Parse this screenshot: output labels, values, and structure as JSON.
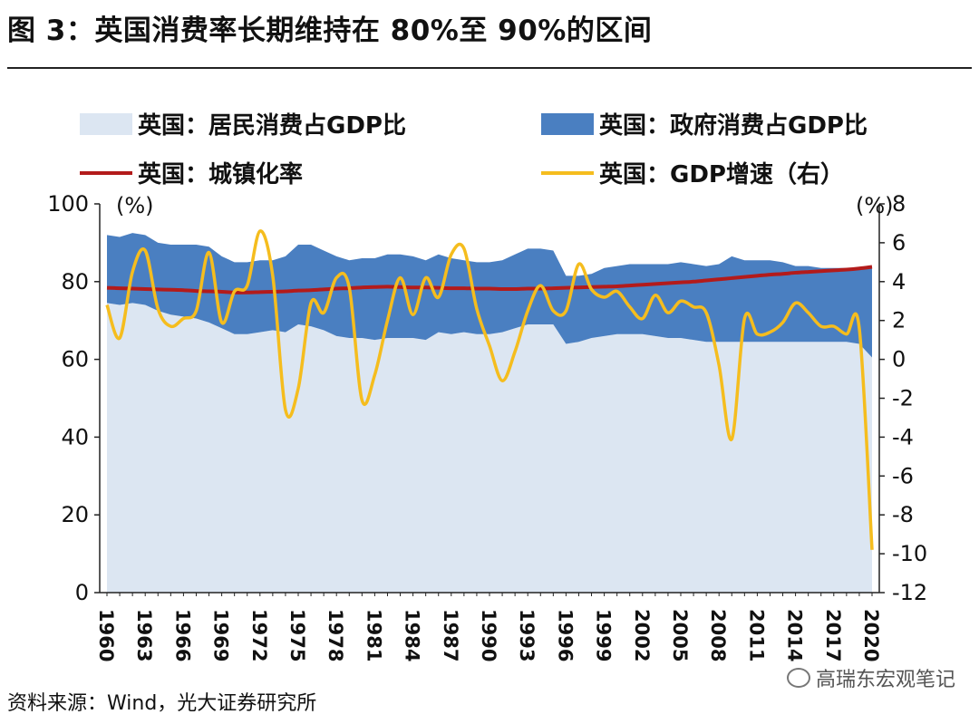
{
  "header": {
    "title": "图 3：英国消费率长期维持在 80%至 90%的区间"
  },
  "legend": {
    "household": "英国：居民消费占GDP比",
    "government": "英国：政府消费占GDP比",
    "urbanization": "英国：城镇化率",
    "gdp": "英国：GDP增速（右）"
  },
  "colors": {
    "household": "#dce6f2",
    "government": "#4a7fc1",
    "urbanization": "#b31b1b",
    "gdp": "#f5bd1e"
  },
  "axis": {
    "left_unit": "(%)",
    "right_unit": "(%)"
  },
  "footer": {
    "source": "资料来源：Wind，光大证券研究所",
    "watermark": "高瑞东宏观笔记"
  },
  "chart_data": {
    "type": "area",
    "title": "英国消费率长期维持在 80%至 90%的区间",
    "x": [
      1960,
      1961,
      1962,
      1963,
      1964,
      1965,
      1966,
      1967,
      1968,
      1969,
      1970,
      1971,
      1972,
      1973,
      1974,
      1975,
      1976,
      1977,
      1978,
      1979,
      1980,
      1981,
      1982,
      1983,
      1984,
      1985,
      1986,
      1987,
      1988,
      1989,
      1990,
      1991,
      1992,
      1993,
      1994,
      1995,
      1996,
      1997,
      1998,
      1999,
      2000,
      2001,
      2002,
      2003,
      2004,
      2005,
      2006,
      2007,
      2008,
      2009,
      2010,
      2011,
      2012,
      2013,
      2014,
      2015,
      2016,
      2017,
      2018,
      2019,
      2020
    ],
    "x_tick_labels": [
      "1960",
      "1963",
      "1966",
      "1969",
      "1972",
      "1975",
      "1978",
      "1981",
      "1984",
      "1987",
      "1990",
      "1993",
      "1996",
      "1999",
      "2002",
      "2005",
      "2008",
      "2011",
      "2014",
      "2017",
      "2020"
    ],
    "left_axis": {
      "ylim": [
        0,
        100
      ],
      "ticks": [
        0,
        20,
        40,
        60,
        80,
        100
      ],
      "unit": "(%)"
    },
    "right_axis": {
      "ylim": [
        -12,
        8
      ],
      "ticks": [
        -12,
        -10,
        -8,
        -6,
        -4,
        -2,
        0,
        2,
        4,
        6,
        8
      ],
      "unit": "(%)"
    },
    "series": [
      {
        "name": "英国：居民消费占GDP比",
        "kind": "stacked-area",
        "axis": "left",
        "values": [
          74.5,
          74,
          74.5,
          74,
          72.5,
          71.5,
          71,
          70.5,
          69.5,
          68,
          66.5,
          66.5,
          67,
          67.5,
          67,
          69,
          68.5,
          67.5,
          66,
          65.5,
          65.5,
          65,
          65.5,
          65.5,
          65.5,
          65,
          67,
          66.5,
          67,
          66.5,
          66.5,
          67,
          68,
          69,
          69,
          69,
          64,
          64.5,
          65.5,
          66,
          66.5,
          66.5,
          66.5,
          66,
          65.5,
          65.5,
          65,
          64.5,
          64.5,
          64.5,
          64.5,
          64.5,
          64.5,
          64.5,
          64.5,
          64.5,
          64.5,
          64.5,
          64.5,
          64,
          60.5
        ]
      },
      {
        "name": "英国：政府消费占GDP比",
        "kind": "stacked-area",
        "axis": "left",
        "values": [
          17.5,
          17.5,
          18,
          18,
          17.5,
          18,
          18.5,
          19,
          19.5,
          18.5,
          18.5,
          18.5,
          18.5,
          18,
          19.5,
          20.5,
          21,
          20.5,
          20.5,
          20,
          20.5,
          21,
          21.5,
          21.5,
          21,
          20.5,
          20,
          19.5,
          18.5,
          18.5,
          18.5,
          18.5,
          19,
          19.5,
          19.5,
          19,
          17.5,
          17,
          16.5,
          17.5,
          17.5,
          18,
          18,
          18.5,
          19,
          19.5,
          19.5,
          19.5,
          20,
          22,
          21,
          21,
          21,
          20.5,
          19.5,
          19.5,
          19,
          19,
          19,
          19.5,
          23.5
        ]
      },
      {
        "name": "英国：城镇化率",
        "kind": "line",
        "axis": "left",
        "values": [
          78.4,
          78.3,
          78.2,
          78.1,
          78,
          77.9,
          77.8,
          77.6,
          77.5,
          77.4,
          77.2,
          77.2,
          77.3,
          77.4,
          77.5,
          77.7,
          77.8,
          78,
          78.2,
          78.3,
          78.5,
          78.6,
          78.7,
          78.6,
          78.5,
          78.5,
          78.4,
          78.3,
          78.3,
          78.2,
          78.2,
          78.1,
          78.1,
          78.2,
          78.2,
          78.3,
          78.4,
          78.5,
          78.6,
          78.7,
          78.8,
          79,
          79.2,
          79.4,
          79.6,
          79.8,
          80,
          80.3,
          80.6,
          80.9,
          81.2,
          81.5,
          81.8,
          82,
          82.3,
          82.5,
          82.7,
          82.9,
          83.1,
          83.4,
          83.8
        ]
      },
      {
        "name": "英国：GDP增速（右）",
        "kind": "line",
        "axis": "right",
        "values": [
          2.8,
          1.1,
          4.5,
          5.6,
          2.6,
          1.7,
          2.1,
          2.5,
          5.5,
          1.9,
          3.5,
          3.8,
          6.6,
          4.3,
          -2.6,
          -1.5,
          2.9,
          2.4,
          4.2,
          3.7,
          -2.1,
          -0.8,
          2.0,
          4.2,
          2.3,
          4.2,
          3.2,
          5.4,
          5.7,
          2.6,
          0.7,
          -1.1,
          0.4,
          2.5,
          3.8,
          2.5,
          2.5,
          4.9,
          3.6,
          3.2,
          3.5,
          2.7,
          2.1,
          3.3,
          2.4,
          3.0,
          2.7,
          2.4,
          -0.3,
          -4.1,
          2.1,
          1.3,
          1.4,
          1.9,
          2.9,
          2.4,
          1.7,
          1.7,
          1.3,
          1.6,
          -9.8
        ]
      }
    ]
  }
}
